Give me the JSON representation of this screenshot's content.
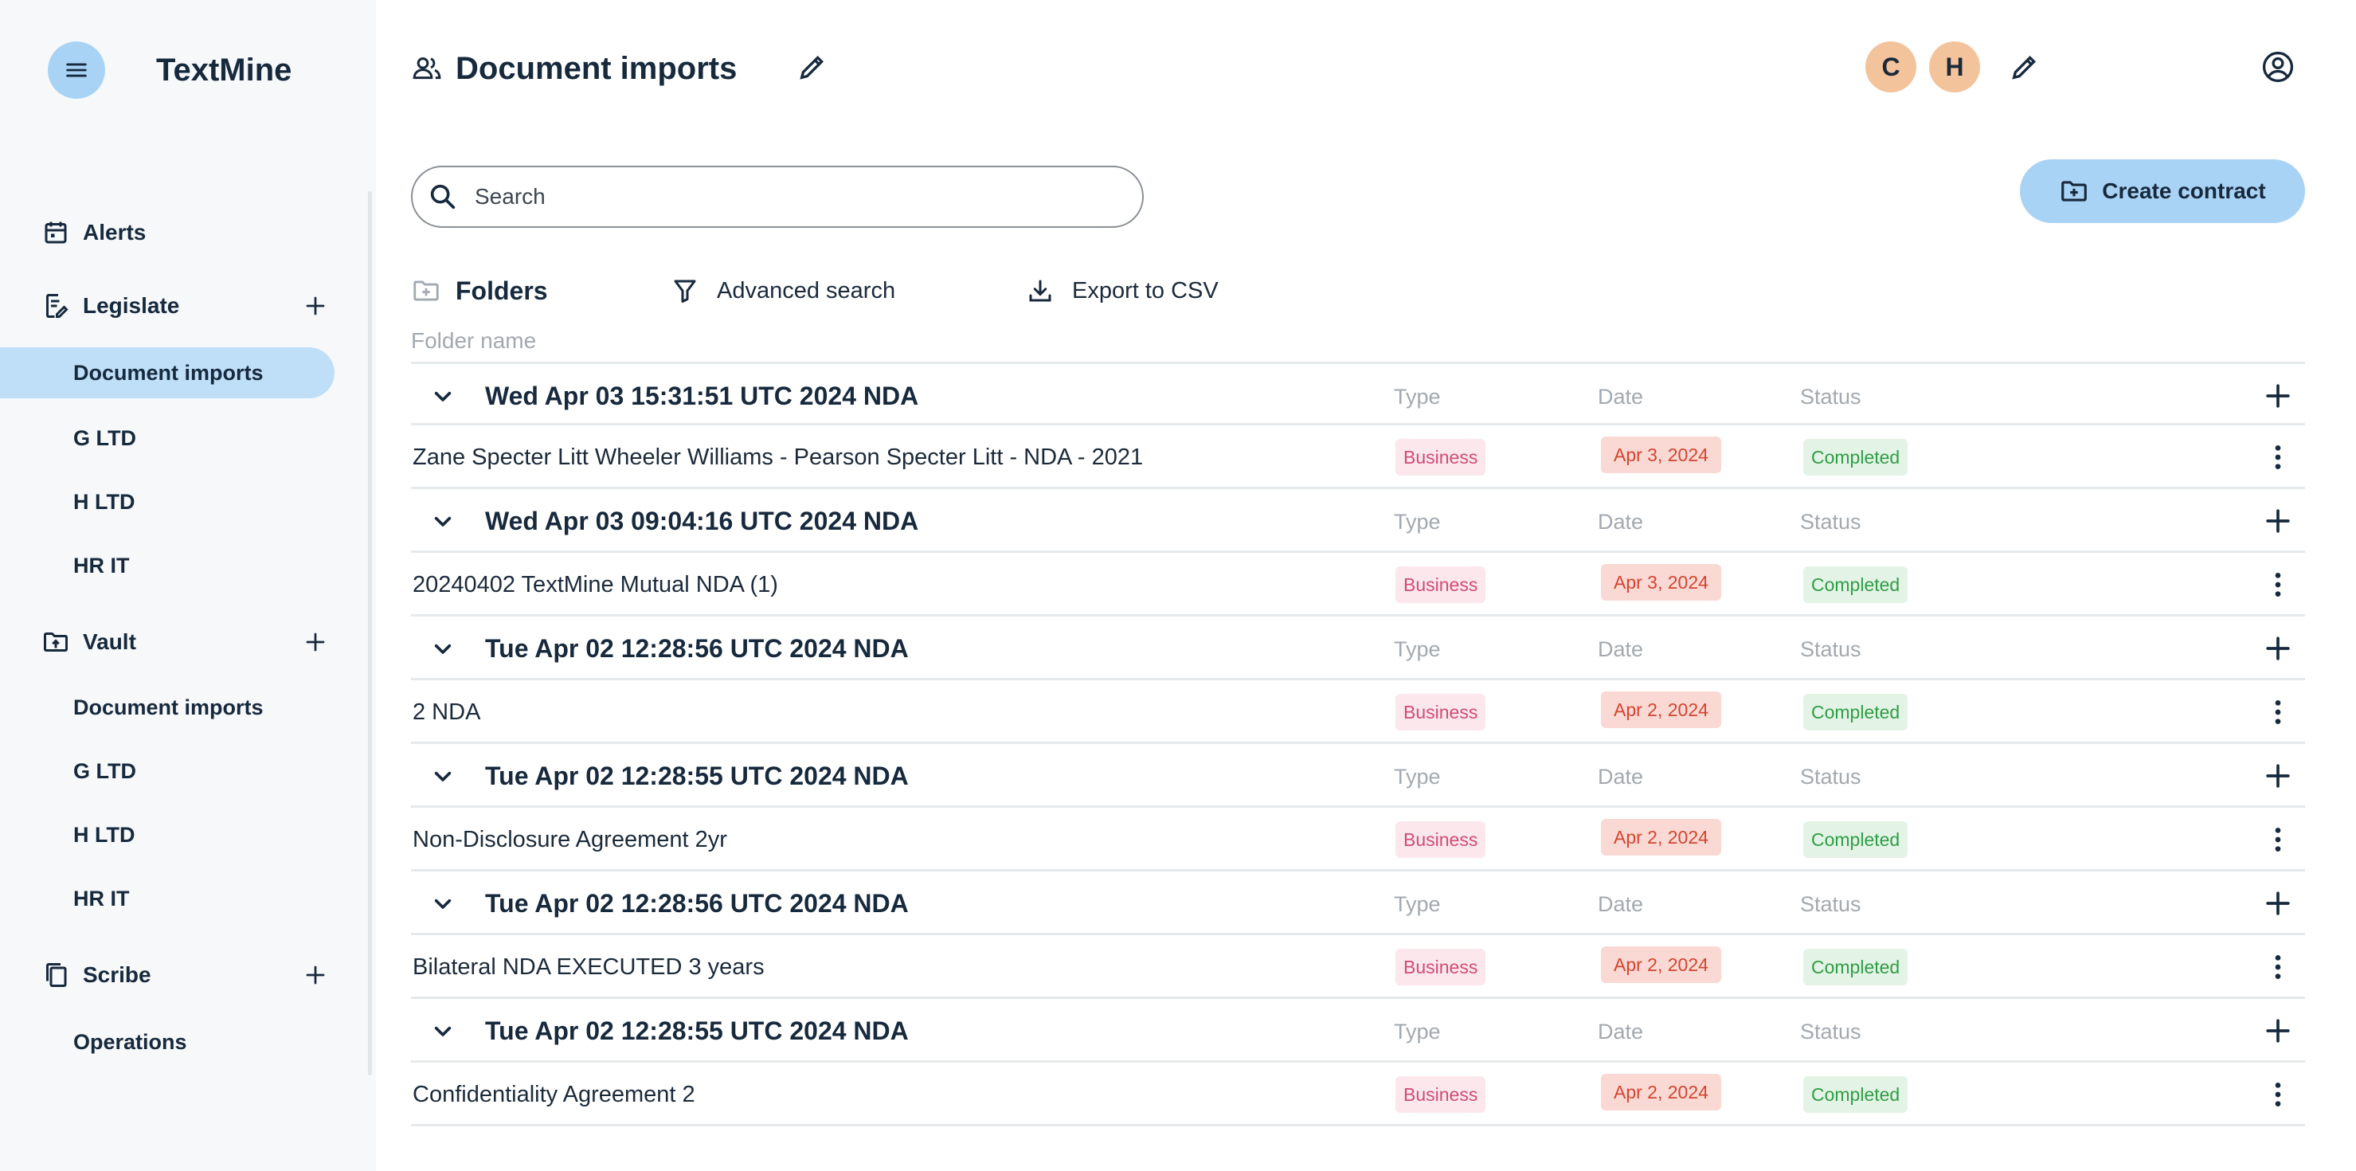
{
  "app": {
    "name": "TextMine"
  },
  "sidebar": {
    "sections": [
      {
        "label": "Alerts",
        "icon": "calendar-icon",
        "items": []
      },
      {
        "label": "Legislate",
        "icon": "document-edit-icon",
        "items": [
          "Document imports",
          "G LTD",
          "H LTD",
          "HR IT"
        ]
      },
      {
        "label": "Vault",
        "icon": "folder-upload-icon",
        "items": [
          "Document imports",
          "G LTD",
          "H LTD",
          "HR IT"
        ]
      },
      {
        "label": "Scribe",
        "icon": "copy-document-icon",
        "items": [
          "Operations"
        ]
      }
    ],
    "active_item": "Legislate / Document imports"
  },
  "header": {
    "title": "Document imports",
    "avatars": [
      "C",
      "H"
    ]
  },
  "search": {
    "placeholder": "Search",
    "value": ""
  },
  "actions": {
    "create_contract": "Create contract"
  },
  "toolbar": {
    "folders": "Folders",
    "advanced_search": "Advanced search",
    "export_csv": "Export to CSV"
  },
  "table": {
    "folder_name_header": "Folder name",
    "col_type": "Type",
    "col_date": "Date",
    "col_status": "Status",
    "groups": [
      {
        "title": "Wed Apr 03 15:31:51 UTC 2024 NDA",
        "doc": {
          "name": "Zane Specter Litt Wheeler Williams - Pearson Specter Litt - NDA - 2021",
          "type": "Business",
          "date": "Apr 3, 2024",
          "status": "Completed"
        }
      },
      {
        "title": "Wed Apr 03 09:04:16 UTC 2024 NDA",
        "doc": {
          "name": "20240402 TextMine Mutual NDA (1)",
          "type": "Business",
          "date": "Apr 3, 2024",
          "status": "Completed"
        }
      },
      {
        "title": "Tue Apr 02 12:28:56 UTC 2024 NDA",
        "doc": {
          "name": "2 NDA",
          "type": "Business",
          "date": "Apr 2, 2024",
          "status": "Completed"
        }
      },
      {
        "title": "Tue Apr 02 12:28:55 UTC 2024 NDA",
        "doc": {
          "name": "Non-Disclosure Agreement 2yr",
          "type": "Business",
          "date": "Apr 2, 2024",
          "status": "Completed"
        }
      },
      {
        "title": "Tue Apr 02 12:28:56 UTC 2024 NDA",
        "doc": {
          "name": "Bilateral NDA EXECUTED 3 years",
          "type": "Business",
          "date": "Apr 2, 2024",
          "status": "Completed"
        }
      },
      {
        "title": "Tue Apr 02 12:28:55 UTC 2024 NDA",
        "doc": {
          "name": "Confidentiality Agreement 2",
          "type": "Business",
          "date": "Apr 2, 2024",
          "status": "Completed"
        }
      }
    ]
  },
  "colors": {
    "accent": "#a9d3f5",
    "active_item": "#bfdff8",
    "avatar": "#f3c39b",
    "type_badge": "#d04c78",
    "date_badge": "#d2452f",
    "status_badge": "#2f9e46"
  }
}
